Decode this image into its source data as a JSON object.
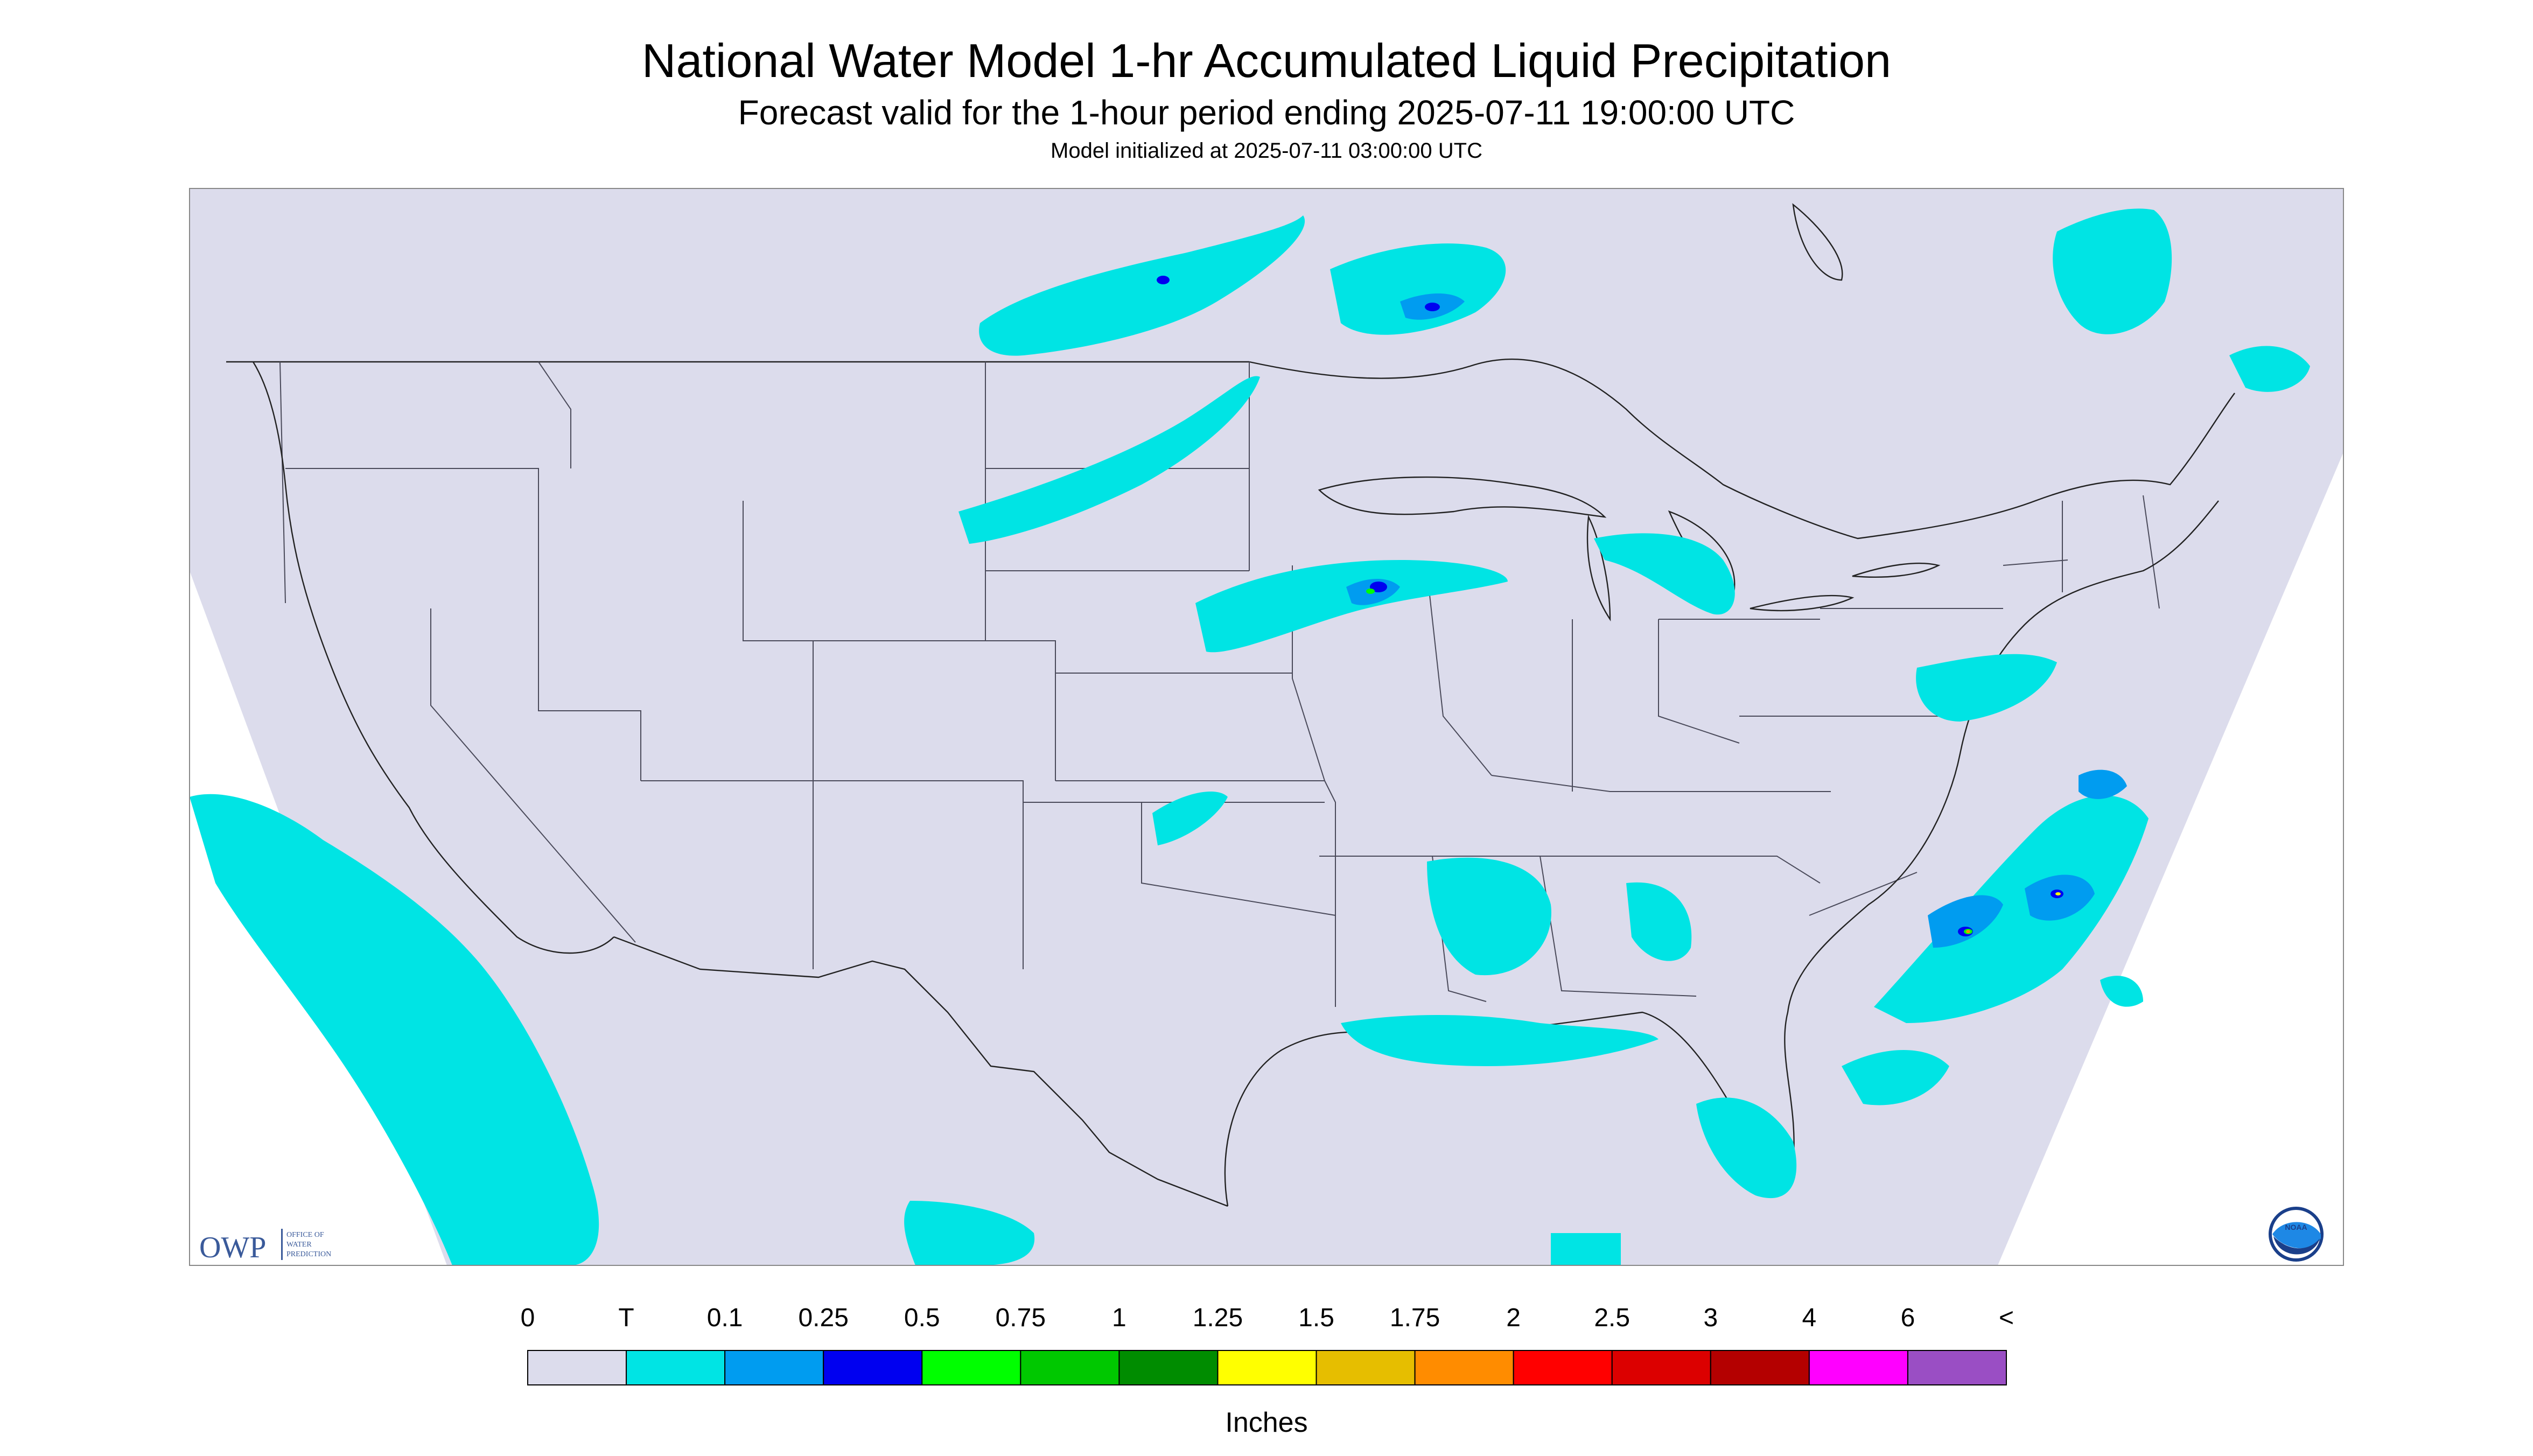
{
  "header": {
    "title": "National Water Model 1-hr Accumulated Liquid Precipitation",
    "subtitle": "Forecast valid for the 1-hour period ending 2025-07-11 19:00:00 UTC",
    "init": "Model initialized at 2025-07-11 03:00:00 UTC"
  },
  "logos": {
    "owp_letters": "OWP",
    "owp_text": [
      "OFFICE OF",
      "WATER",
      "PREDICTION"
    ],
    "noaa": "NOAA"
  },
  "legend": {
    "units": "Inches",
    "labels": [
      "0",
      "T",
      "0.1",
      "0.25",
      "0.5",
      "0.75",
      "1",
      "1.25",
      "1.5",
      "1.75",
      "2",
      "2.5",
      "3",
      "4",
      "6",
      "<"
    ],
    "colors": [
      "#dcdcec",
      "#00e4e4",
      "#009cf0",
      "#0000f0",
      "#00ff00",
      "#00c800",
      "#008c00",
      "#ffff00",
      "#e6be00",
      "#ff8c00",
      "#ff0000",
      "#dc0000",
      "#b40000",
      "#ff00ff",
      "#9a4ec4"
    ]
  },
  "colors": {
    "no_precip": "#dcdcec",
    "trace": "#00e4e4",
    "light": "#009cf0",
    "moderate": "#0000f0",
    "heavy": "#00ff00",
    "very_heavy": "#ffff00",
    "extreme": "#ff8c00"
  }
}
